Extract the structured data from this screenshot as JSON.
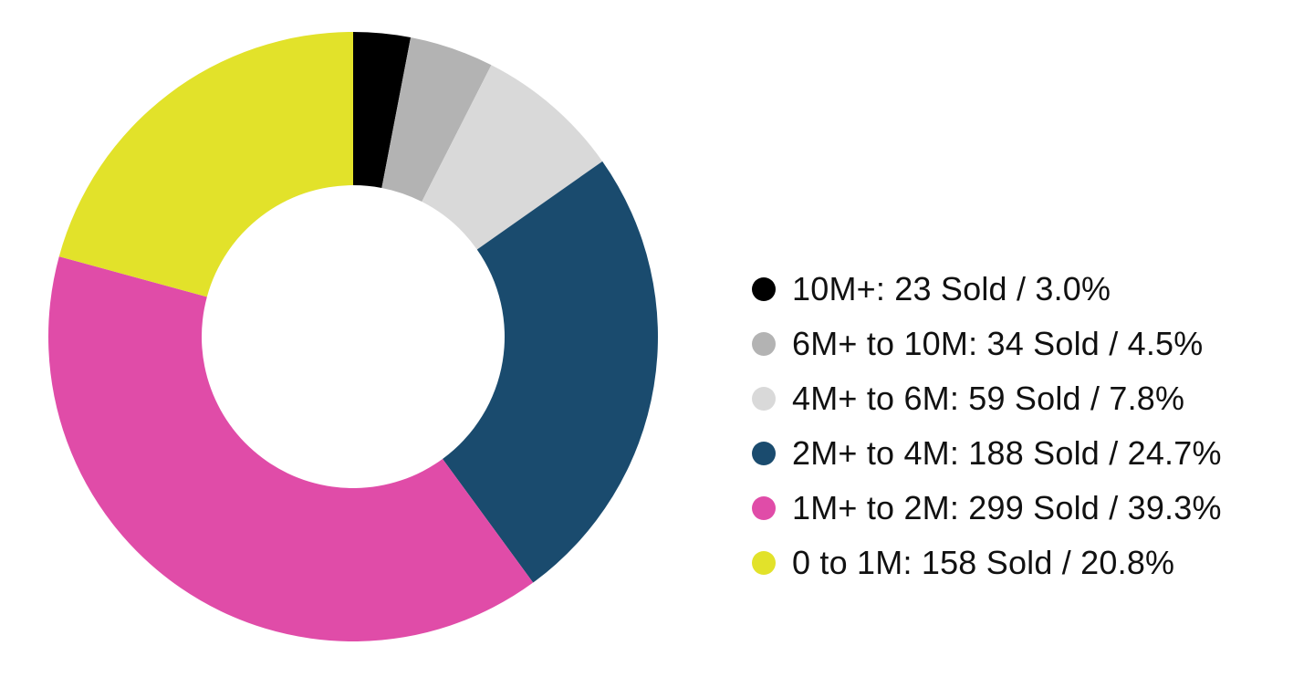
{
  "chart_data": {
    "type": "pie",
    "variant": "donut",
    "title": "",
    "legend_position": "right",
    "slices": [
      {
        "label": "10M+: 23 Sold / 3.0%",
        "range": "10M+",
        "sold": 23,
        "percent": 3.0,
        "color": "#000000"
      },
      {
        "label": "6M+ to 10M: 34 Sold / 4.5%",
        "range": "6M+ to 10M",
        "sold": 34,
        "percent": 4.5,
        "color": "#b3b3b3"
      },
      {
        "label": "4M+ to 6M: 59 Sold / 7.8%",
        "range": "4M+ to 6M",
        "sold": 59,
        "percent": 7.8,
        "color": "#d9d9d9"
      },
      {
        "label": "2M+ to 4M: 188 Sold / 24.7%",
        "range": "2M+ to 4M",
        "sold": 188,
        "percent": 24.7,
        "color": "#1a4b6e"
      },
      {
        "label": "1M+ to 2M: 299 Sold / 39.3%",
        "range": "1M+ to 2M",
        "sold": 299,
        "percent": 39.3,
        "color": "#e04ca8"
      },
      {
        "label": "0 to 1M: 158 Sold / 20.8%",
        "range": "0 to 1M",
        "sold": 158,
        "percent": 20.8,
        "color": "#e2e22a"
      }
    ]
  }
}
